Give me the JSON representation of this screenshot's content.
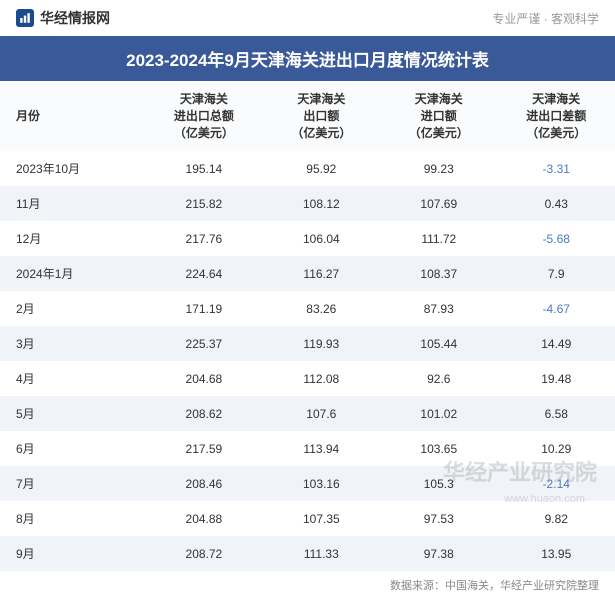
{
  "header": {
    "logo_text": "华经情报网",
    "tagline": "专业严谨 · 客观科学"
  },
  "title": "2023-2024年9月天津海关进出口月度情况统计表",
  "table": {
    "columns": [
      "月份",
      "天津海关\n进出口总额\n（亿美元）",
      "天津海关\n出口额\n（亿美元）",
      "天津海关\n进口额\n（亿美元）",
      "天津海关\n进出口差额\n（亿美元）"
    ],
    "rows": [
      {
        "month": "2023年10月",
        "total": "195.14",
        "export": "95.92",
        "import": "99.23",
        "balance": "-3.31"
      },
      {
        "month": "11月",
        "total": "215.82",
        "export": "108.12",
        "import": "107.69",
        "balance": "0.43"
      },
      {
        "month": "12月",
        "total": "217.76",
        "export": "106.04",
        "import": "111.72",
        "balance": "-5.68"
      },
      {
        "month": "2024年1月",
        "total": "224.64",
        "export": "116.27",
        "import": "108.37",
        "balance": "7.9"
      },
      {
        "month": "2月",
        "total": "171.19",
        "export": "83.26",
        "import": "87.93",
        "balance": "-4.67"
      },
      {
        "month": "3月",
        "total": "225.37",
        "export": "119.93",
        "import": "105.44",
        "balance": "14.49"
      },
      {
        "month": "4月",
        "total": "204.68",
        "export": "112.08",
        "import": "92.6",
        "balance": "19.48"
      },
      {
        "month": "5月",
        "total": "208.62",
        "export": "107.6",
        "import": "101.02",
        "balance": "6.58"
      },
      {
        "month": "6月",
        "total": "217.59",
        "export": "113.94",
        "import": "103.65",
        "balance": "10.29"
      },
      {
        "month": "7月",
        "total": "208.46",
        "export": "103.16",
        "import": "105.3",
        "balance": "-2.14"
      },
      {
        "month": "8月",
        "total": "204.88",
        "export": "107.35",
        "import": "97.53",
        "balance": "9.82"
      },
      {
        "month": "9月",
        "total": "208.72",
        "export": "111.33",
        "import": "97.38",
        "balance": "13.95"
      }
    ]
  },
  "footer": "数据来源：中国海关，华经产业研究院整理",
  "watermark": "华经产业研究院",
  "watermark_sub": "www.huaon.com",
  "colors": {
    "title_bg": "#3a5998",
    "even_row": "#f0f3f8",
    "negative": "#4a7bc0",
    "text": "#333333",
    "muted": "#888888"
  }
}
